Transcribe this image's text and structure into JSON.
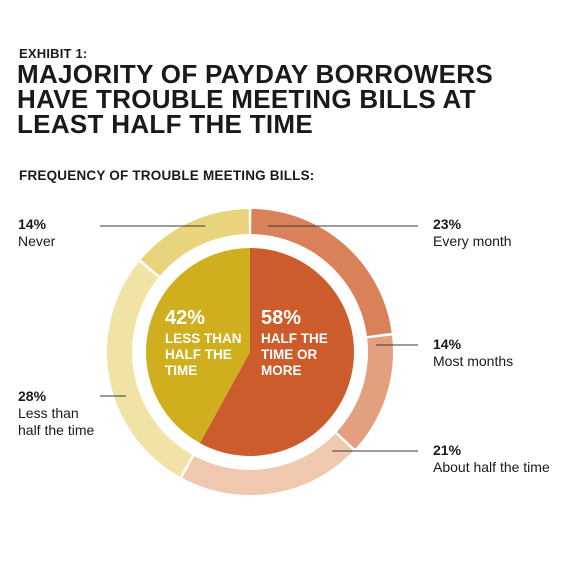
{
  "header": {
    "exhibit": "EXHIBIT 1:",
    "title": "MAJORITY OF PAYDAY BORROWERS HAVE TROUBLE MEETING BILLS AT LEAST HALF THE TIME",
    "subtitle": "FREQUENCY OF TROUBLE MEETING BILLS:"
  },
  "colors": {
    "every_month": "#d9825a",
    "most_months": "#e2a07f",
    "about_half": "#f0c8b0",
    "less_than_half_outer": "#f1e3a5",
    "never": "#e8d47c",
    "inner_left": "#cfaf1e",
    "inner_right": "#cd5c2c"
  },
  "chart_data": [
    {
      "type": "pie",
      "ring": "outer",
      "categories": [
        "Every month",
        "Most months",
        "About half the time",
        "Less than half the time",
        "Never"
      ],
      "values": [
        23,
        14,
        21,
        28,
        14
      ],
      "labels": [
        {
          "pct": "23%",
          "text": [
            "Every month"
          ]
        },
        {
          "pct": "14%",
          "text": [
            "Most months"
          ]
        },
        {
          "pct": "21%",
          "text": [
            "About half the time"
          ]
        },
        {
          "pct": "28%",
          "text": [
            "Less than",
            "half the time"
          ]
        },
        {
          "pct": "14%",
          "text": [
            "Never"
          ]
        }
      ]
    },
    {
      "type": "pie",
      "ring": "inner",
      "categories": [
        "HALF THE TIME OR MORE",
        "LESS THAN HALF THE TIME"
      ],
      "values": [
        58,
        42
      ],
      "labels": [
        {
          "pct": "58%",
          "text": [
            "HALF THE",
            "TIME OR",
            "MORE"
          ]
        },
        {
          "pct": "42%",
          "text": [
            "LESS THAN",
            "HALF THE",
            "TIME"
          ]
        }
      ]
    }
  ]
}
